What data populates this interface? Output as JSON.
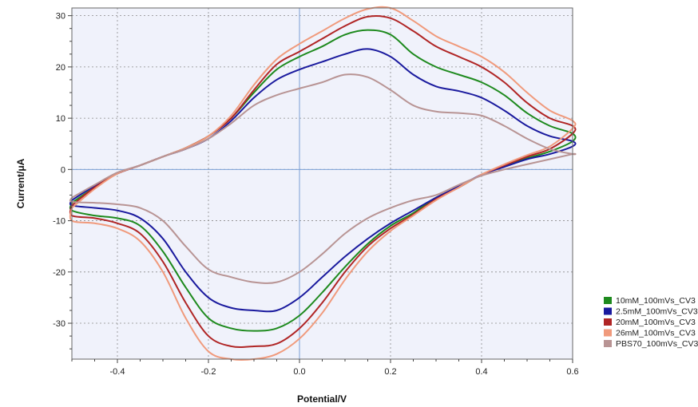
{
  "chart_data": {
    "type": "line",
    "xlabel": "Potential/V",
    "ylabel": "Current/μA",
    "xlim": [
      -0.5,
      0.6
    ],
    "ylim": [
      -37,
      31.5
    ],
    "xticks": [
      -0.4,
      -0.2,
      0.0,
      0.2,
      0.4,
      0.6
    ],
    "xtick_labels": [
      "-0.4",
      "-0.2",
      "0.0",
      "0.2",
      "0.4",
      "0.6"
    ],
    "yticks": [
      -30,
      -20,
      -10,
      0,
      10,
      20,
      30
    ],
    "ytick_labels": [
      "-30",
      "-20",
      "-10",
      "0",
      "10",
      "20",
      "30"
    ],
    "grid": true,
    "zero_lines": true,
    "legend_position": "bottom-right",
    "plot_background": "#f0f2fb",
    "series": [
      {
        "name": "10mM_100mVs_CV3",
        "color": "#1e8a1e",
        "forward": [
          [
            -0.5,
            -6.5
          ],
          [
            -0.45,
            -3.5
          ],
          [
            -0.4,
            -0.8
          ],
          [
            -0.35,
            0.8
          ],
          [
            -0.3,
            2.5
          ],
          [
            -0.25,
            4.2
          ],
          [
            -0.2,
            6.5
          ],
          [
            -0.15,
            10
          ],
          [
            -0.1,
            15
          ],
          [
            -0.05,
            19.5
          ],
          [
            0.0,
            22
          ],
          [
            0.05,
            24
          ],
          [
            0.1,
            26.3
          ],
          [
            0.15,
            27.2
          ],
          [
            0.2,
            26.3
          ],
          [
            0.25,
            22.5
          ],
          [
            0.3,
            20
          ],
          [
            0.35,
            18.5
          ],
          [
            0.4,
            17
          ],
          [
            0.45,
            14.5
          ],
          [
            0.5,
            11
          ],
          [
            0.55,
            8.5
          ],
          [
            0.6,
            7
          ]
        ],
        "reverse": [
          [
            0.6,
            5.5
          ],
          [
            0.55,
            3.5
          ],
          [
            0.5,
            2.2
          ],
          [
            0.45,
            0.8
          ],
          [
            0.4,
            -1
          ],
          [
            0.35,
            -3.5
          ],
          [
            0.3,
            -5.5
          ],
          [
            0.25,
            -8.5
          ],
          [
            0.2,
            -11
          ],
          [
            0.15,
            -14.5
          ],
          [
            0.1,
            -19
          ],
          [
            0.05,
            -24
          ],
          [
            0.0,
            -28.5
          ],
          [
            -0.05,
            -31
          ],
          [
            -0.1,
            -31.5
          ],
          [
            -0.15,
            -31
          ],
          [
            -0.2,
            -29
          ],
          [
            -0.25,
            -23
          ],
          [
            -0.3,
            -16
          ],
          [
            -0.35,
            -11
          ],
          [
            -0.4,
            -9.5
          ],
          [
            -0.45,
            -9
          ],
          [
            -0.5,
            -8
          ]
        ]
      },
      {
        "name": "2.5mM_100mVs_CV3",
        "color": "#1a1a9e",
        "forward": [
          [
            -0.5,
            -6
          ],
          [
            -0.45,
            -3.2
          ],
          [
            -0.4,
            -0.8
          ],
          [
            -0.35,
            0.8
          ],
          [
            -0.3,
            2.5
          ],
          [
            -0.25,
            4
          ],
          [
            -0.2,
            6
          ],
          [
            -0.15,
            9.5
          ],
          [
            -0.1,
            14
          ],
          [
            -0.05,
            17.5
          ],
          [
            0.0,
            19.5
          ],
          [
            0.05,
            21
          ],
          [
            0.1,
            22.5
          ],
          [
            0.15,
            23.5
          ],
          [
            0.2,
            22
          ],
          [
            0.25,
            18.5
          ],
          [
            0.3,
            16.2
          ],
          [
            0.35,
            15.3
          ],
          [
            0.4,
            14
          ],
          [
            0.45,
            11.5
          ],
          [
            0.5,
            8.5
          ],
          [
            0.55,
            6.5
          ],
          [
            0.6,
            5.5
          ]
        ],
        "reverse": [
          [
            0.6,
            4.5
          ],
          [
            0.55,
            3
          ],
          [
            0.5,
            2
          ],
          [
            0.45,
            0.5
          ],
          [
            0.4,
            -1
          ],
          [
            0.35,
            -3.3
          ],
          [
            0.3,
            -5.5
          ],
          [
            0.25,
            -8
          ],
          [
            0.2,
            -10.5
          ],
          [
            0.15,
            -13.5
          ],
          [
            0.1,
            -17
          ],
          [
            0.05,
            -21
          ],
          [
            0.0,
            -25
          ],
          [
            -0.05,
            -27.5
          ],
          [
            -0.1,
            -27.5
          ],
          [
            -0.15,
            -27
          ],
          [
            -0.2,
            -25
          ],
          [
            -0.25,
            -20
          ],
          [
            -0.3,
            -13.5
          ],
          [
            -0.35,
            -9.5
          ],
          [
            -0.4,
            -8
          ],
          [
            -0.45,
            -7.5
          ],
          [
            -0.5,
            -7
          ]
        ]
      },
      {
        "name": "20mM_100mVs_CV3",
        "color": "#b02525",
        "forward": [
          [
            -0.5,
            -7
          ],
          [
            -0.45,
            -3.5
          ],
          [
            -0.4,
            -0.8
          ],
          [
            -0.35,
            0.8
          ],
          [
            -0.3,
            2.5
          ],
          [
            -0.25,
            4.2
          ],
          [
            -0.2,
            6.5
          ],
          [
            -0.15,
            10
          ],
          [
            -0.1,
            15.5
          ],
          [
            -0.05,
            20.5
          ],
          [
            0.0,
            23
          ],
          [
            0.05,
            25.5
          ],
          [
            0.1,
            28
          ],
          [
            0.15,
            29.8
          ],
          [
            0.2,
            29.5
          ],
          [
            0.25,
            27
          ],
          [
            0.3,
            24
          ],
          [
            0.35,
            22
          ],
          [
            0.4,
            20
          ],
          [
            0.45,
            17
          ],
          [
            0.5,
            13
          ],
          [
            0.55,
            10
          ],
          [
            0.6,
            8.5
          ]
        ],
        "reverse": [
          [
            0.6,
            7
          ],
          [
            0.55,
            4
          ],
          [
            0.5,
            2.5
          ],
          [
            0.45,
            0.8
          ],
          [
            0.4,
            -1
          ],
          [
            0.35,
            -3.5
          ],
          [
            0.3,
            -5.8
          ],
          [
            0.25,
            -8.8
          ],
          [
            0.2,
            -11.5
          ],
          [
            0.15,
            -15
          ],
          [
            0.1,
            -20
          ],
          [
            0.05,
            -26
          ],
          [
            0.0,
            -31
          ],
          [
            -0.05,
            -34
          ],
          [
            -0.1,
            -34.5
          ],
          [
            -0.15,
            -34.5
          ],
          [
            -0.2,
            -32.5
          ],
          [
            -0.25,
            -26
          ],
          [
            -0.3,
            -18
          ],
          [
            -0.35,
            -12.5
          ],
          [
            -0.4,
            -10.5
          ],
          [
            -0.45,
            -9.5
          ],
          [
            -0.5,
            -9
          ]
        ]
      },
      {
        "name": "26mM_100mVs_CV3",
        "color": "#f09a7c",
        "forward": [
          [
            -0.5,
            -7.5
          ],
          [
            -0.45,
            -3.8
          ],
          [
            -0.4,
            -0.8
          ],
          [
            -0.35,
            0.8
          ],
          [
            -0.3,
            2.5
          ],
          [
            -0.25,
            4.2
          ],
          [
            -0.2,
            6.5
          ],
          [
            -0.15,
            10.5
          ],
          [
            -0.1,
            16.5
          ],
          [
            -0.05,
            21.5
          ],
          [
            0.0,
            24.5
          ],
          [
            0.05,
            27
          ],
          [
            0.1,
            29.5
          ],
          [
            0.15,
            31.3
          ],
          [
            0.2,
            31.5
          ],
          [
            0.25,
            29
          ],
          [
            0.3,
            26
          ],
          [
            0.35,
            24
          ],
          [
            0.4,
            22
          ],
          [
            0.45,
            19
          ],
          [
            0.5,
            15
          ],
          [
            0.55,
            11.5
          ],
          [
            0.6,
            9.5
          ]
        ],
        "reverse": [
          [
            0.6,
            8
          ],
          [
            0.55,
            4.5
          ],
          [
            0.5,
            2.8
          ],
          [
            0.45,
            1
          ],
          [
            0.4,
            -1
          ],
          [
            0.35,
            -3.5
          ],
          [
            0.3,
            -6
          ],
          [
            0.25,
            -9
          ],
          [
            0.2,
            -12
          ],
          [
            0.15,
            -16
          ],
          [
            0.1,
            -21.5
          ],
          [
            0.05,
            -28
          ],
          [
            0.0,
            -33
          ],
          [
            -0.05,
            -36
          ],
          [
            -0.1,
            -37
          ],
          [
            -0.15,
            -37
          ],
          [
            -0.2,
            -35.5
          ],
          [
            -0.25,
            -29
          ],
          [
            -0.3,
            -20
          ],
          [
            -0.35,
            -14
          ],
          [
            -0.4,
            -11.5
          ],
          [
            -0.45,
            -10.5
          ],
          [
            -0.5,
            -10
          ]
        ]
      },
      {
        "name": "PBS70_100mVs_CV3",
        "color": "#b89494",
        "forward": [
          [
            -0.5,
            -5.5
          ],
          [
            -0.45,
            -3
          ],
          [
            -0.4,
            -0.6
          ],
          [
            -0.35,
            0.8
          ],
          [
            -0.3,
            2.5
          ],
          [
            -0.25,
            4
          ],
          [
            -0.2,
            6
          ],
          [
            -0.15,
            9
          ],
          [
            -0.1,
            12.5
          ],
          [
            -0.05,
            14.5
          ],
          [
            0.0,
            15.8
          ],
          [
            0.05,
            17
          ],
          [
            0.1,
            18.5
          ],
          [
            0.15,
            18
          ],
          [
            0.2,
            15.5
          ],
          [
            0.25,
            12.5
          ],
          [
            0.3,
            11.3
          ],
          [
            0.35,
            11
          ],
          [
            0.4,
            10.5
          ],
          [
            0.45,
            8.5
          ],
          [
            0.5,
            6
          ],
          [
            0.55,
            4
          ],
          [
            0.6,
            3
          ]
        ],
        "reverse": [
          [
            0.6,
            3
          ],
          [
            0.55,
            2
          ],
          [
            0.5,
            1
          ],
          [
            0.45,
            0
          ],
          [
            0.4,
            -1.2
          ],
          [
            0.35,
            -3
          ],
          [
            0.3,
            -5
          ],
          [
            0.25,
            -6
          ],
          [
            0.2,
            -7.5
          ],
          [
            0.15,
            -9.5
          ],
          [
            0.1,
            -12.5
          ],
          [
            0.05,
            -16.5
          ],
          [
            0.0,
            -20
          ],
          [
            -0.05,
            -22
          ],
          [
            -0.1,
            -22
          ],
          [
            -0.15,
            -21
          ],
          [
            -0.2,
            -19.5
          ],
          [
            -0.25,
            -15
          ],
          [
            -0.3,
            -10
          ],
          [
            -0.35,
            -7.5
          ],
          [
            -0.4,
            -6.8
          ],
          [
            -0.45,
            -6.5
          ],
          [
            -0.5,
            -6.3
          ]
        ]
      }
    ]
  }
}
